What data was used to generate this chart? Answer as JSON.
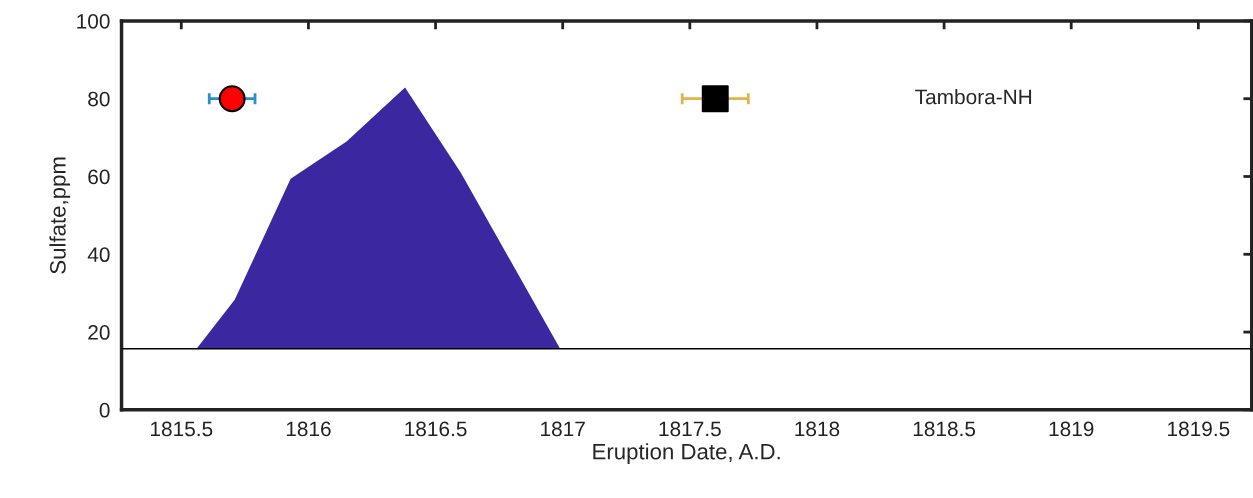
{
  "chart_data": {
    "type": "area",
    "xlabel": "Eruption Date, A.D.",
    "ylabel": "Sulfate,ppm",
    "annotations": [
      "Tambora-NH"
    ],
    "series": [
      {
        "color": "#3b28a0",
        "x": [
          1815.56,
          1815.71,
          1815.93,
          1816.15,
          1816.38,
          1816.6,
          1816.99
        ],
        "values": [
          15.7,
          28.3,
          59.4,
          69.0,
          82.9,
          60.9,
          15.7
        ]
      },
      {
        "type": "scatter",
        "color": "#ff0000",
        "marker": "circle",
        "x": [
          1815.7
        ],
        "values": [
          80
        ],
        "xerrors": [
          0.09
        ]
      },
      {
        "type": "scatter",
        "color": "#000000",
        "marker": "square",
        "x": [
          1817.6
        ],
        "values": [
          80
        ],
        "xerrors": [
          0.13
        ]
      }
    ],
    "ref_lines": [
      {
        "axis": "y",
        "value": 15.7,
        "color": "#000000"
      }
    ],
    "xlim": [
      1815.265,
      1819.71
    ],
    "xticks": [
      1815.5,
      1816,
      1816.5,
      1817,
      1817.5,
      1818,
      1818.5,
      1819,
      1819.5
    ],
    "ylim": [
      0,
      100
    ],
    "yticks": [
      0,
      20,
      40,
      60,
      80,
      100
    ],
    "grid": false,
    "legend": false
  }
}
